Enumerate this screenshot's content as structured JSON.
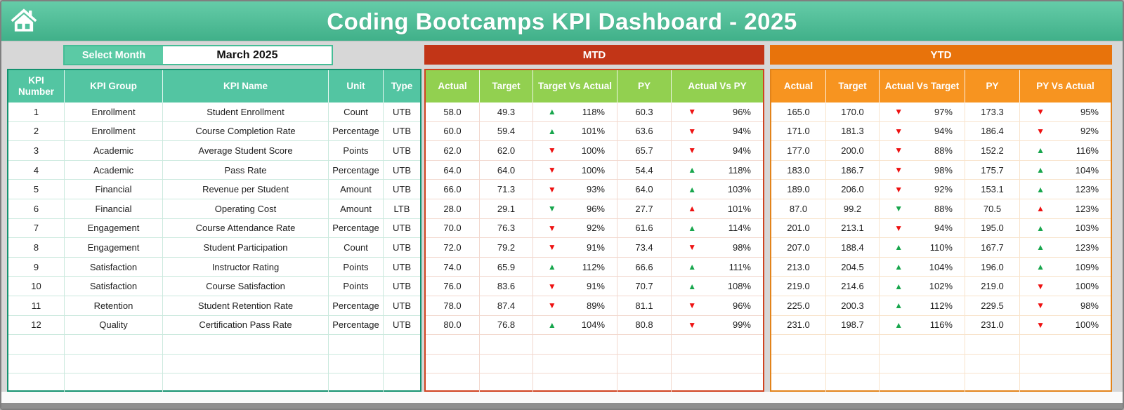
{
  "title": "Coding Bootcamps KPI Dashboard - 2025",
  "month_selector": {
    "label": "Select Month",
    "value": "March 2025"
  },
  "left_headers": [
    "KPI Number",
    "KPI Group",
    "KPI Name",
    "Unit",
    "Type"
  ],
  "mtd": {
    "title": "MTD",
    "headers": [
      "Actual",
      "Target",
      "Target Vs Actual",
      "PY",
      "Actual Vs PY"
    ]
  },
  "ytd": {
    "title": "YTD",
    "headers": [
      "Actual",
      "Target",
      "Actual Vs Target",
      "PY",
      "PY Vs Actual"
    ]
  },
  "empty_rows": 3,
  "colors": {
    "header_teal": "#53C5A2",
    "banner_mtd_red": "#C23517",
    "mtd_header_green": "#92D050",
    "banner_ytd_orange": "#E8730B",
    "ytd_header_orange": "#F79420",
    "arrow_green": "#18A64D",
    "arrow_red": "#EE1111"
  },
  "rows": [
    {
      "num": "1",
      "group": "Enrollment",
      "name": "Student Enrollment",
      "unit": "Count",
      "type": "UTB",
      "mtd": {
        "actual": "58.0",
        "target": "49.3",
        "tva": {
          "dir": "up",
          "color": "green",
          "value": "118%"
        },
        "py": "60.3",
        "avp": {
          "dir": "down",
          "color": "red",
          "value": "96%"
        }
      },
      "ytd": {
        "actual": "165.0",
        "target": "170.0",
        "avt": {
          "dir": "down",
          "color": "red",
          "value": "97%"
        },
        "py": "173.3",
        "pva": {
          "dir": "down",
          "color": "red",
          "value": "95%"
        }
      }
    },
    {
      "num": "2",
      "group": "Enrollment",
      "name": "Course Completion Rate",
      "unit": "Percentage",
      "type": "UTB",
      "mtd": {
        "actual": "60.0",
        "target": "59.4",
        "tva": {
          "dir": "up",
          "color": "green",
          "value": "101%"
        },
        "py": "63.6",
        "avp": {
          "dir": "down",
          "color": "red",
          "value": "94%"
        }
      },
      "ytd": {
        "actual": "171.0",
        "target": "181.3",
        "avt": {
          "dir": "down",
          "color": "red",
          "value": "94%"
        },
        "py": "186.4",
        "pva": {
          "dir": "down",
          "color": "red",
          "value": "92%"
        }
      }
    },
    {
      "num": "3",
      "group": "Academic",
      "name": "Average Student Score",
      "unit": "Points",
      "type": "UTB",
      "mtd": {
        "actual": "62.0",
        "target": "62.0",
        "tva": {
          "dir": "down",
          "color": "red",
          "value": "100%"
        },
        "py": "65.7",
        "avp": {
          "dir": "down",
          "color": "red",
          "value": "94%"
        }
      },
      "ytd": {
        "actual": "177.0",
        "target": "200.0",
        "avt": {
          "dir": "down",
          "color": "red",
          "value": "88%"
        },
        "py": "152.2",
        "pva": {
          "dir": "up",
          "color": "green",
          "value": "116%"
        }
      }
    },
    {
      "num": "4",
      "group": "Academic",
      "name": "Pass Rate",
      "unit": "Percentage",
      "type": "UTB",
      "mtd": {
        "actual": "64.0",
        "target": "64.0",
        "tva": {
          "dir": "down",
          "color": "red",
          "value": "100%"
        },
        "py": "54.4",
        "avp": {
          "dir": "up",
          "color": "green",
          "value": "118%"
        }
      },
      "ytd": {
        "actual": "183.0",
        "target": "186.7",
        "avt": {
          "dir": "down",
          "color": "red",
          "value": "98%"
        },
        "py": "175.7",
        "pva": {
          "dir": "up",
          "color": "green",
          "value": "104%"
        }
      }
    },
    {
      "num": "5",
      "group": "Financial",
      "name": "Revenue per Student",
      "unit": "Amount",
      "type": "UTB",
      "mtd": {
        "actual": "66.0",
        "target": "71.3",
        "tva": {
          "dir": "down",
          "color": "red",
          "value": "93%"
        },
        "py": "64.0",
        "avp": {
          "dir": "up",
          "color": "green",
          "value": "103%"
        }
      },
      "ytd": {
        "actual": "189.0",
        "target": "206.0",
        "avt": {
          "dir": "down",
          "color": "red",
          "value": "92%"
        },
        "py": "153.1",
        "pva": {
          "dir": "up",
          "color": "green",
          "value": "123%"
        }
      }
    },
    {
      "num": "6",
      "group": "Financial",
      "name": "Operating Cost",
      "unit": "Amount",
      "type": "LTB",
      "mtd": {
        "actual": "28.0",
        "target": "29.1",
        "tva": {
          "dir": "down",
          "color": "green",
          "value": "96%"
        },
        "py": "27.7",
        "avp": {
          "dir": "up",
          "color": "red",
          "value": "101%"
        }
      },
      "ytd": {
        "actual": "87.0",
        "target": "99.2",
        "avt": {
          "dir": "down",
          "color": "green",
          "value": "88%"
        },
        "py": "70.5",
        "pva": {
          "dir": "up",
          "color": "red",
          "value": "123%"
        }
      }
    },
    {
      "num": "7",
      "group": "Engagement",
      "name": "Course Attendance Rate",
      "unit": "Percentage",
      "type": "UTB",
      "mtd": {
        "actual": "70.0",
        "target": "76.3",
        "tva": {
          "dir": "down",
          "color": "red",
          "value": "92%"
        },
        "py": "61.6",
        "avp": {
          "dir": "up",
          "color": "green",
          "value": "114%"
        }
      },
      "ytd": {
        "actual": "201.0",
        "target": "213.1",
        "avt": {
          "dir": "down",
          "color": "red",
          "value": "94%"
        },
        "py": "195.0",
        "pva": {
          "dir": "up",
          "color": "green",
          "value": "103%"
        }
      }
    },
    {
      "num": "8",
      "group": "Engagement",
      "name": "Student Participation",
      "unit": "Count",
      "type": "UTB",
      "mtd": {
        "actual": "72.0",
        "target": "79.2",
        "tva": {
          "dir": "down",
          "color": "red",
          "value": "91%"
        },
        "py": "73.4",
        "avp": {
          "dir": "down",
          "color": "red",
          "value": "98%"
        }
      },
      "ytd": {
        "actual": "207.0",
        "target": "188.4",
        "avt": {
          "dir": "up",
          "color": "green",
          "value": "110%"
        },
        "py": "167.7",
        "pva": {
          "dir": "up",
          "color": "green",
          "value": "123%"
        }
      }
    },
    {
      "num": "9",
      "group": "Satisfaction",
      "name": "Instructor Rating",
      "unit": "Points",
      "type": "UTB",
      "mtd": {
        "actual": "74.0",
        "target": "65.9",
        "tva": {
          "dir": "up",
          "color": "green",
          "value": "112%"
        },
        "py": "66.6",
        "avp": {
          "dir": "up",
          "color": "green",
          "value": "111%"
        }
      },
      "ytd": {
        "actual": "213.0",
        "target": "204.5",
        "avt": {
          "dir": "up",
          "color": "green",
          "value": "104%"
        },
        "py": "196.0",
        "pva": {
          "dir": "up",
          "color": "green",
          "value": "109%"
        }
      }
    },
    {
      "num": "10",
      "group": "Satisfaction",
      "name": "Course Satisfaction",
      "unit": "Points",
      "type": "UTB",
      "mtd": {
        "actual": "76.0",
        "target": "83.6",
        "tva": {
          "dir": "down",
          "color": "red",
          "value": "91%"
        },
        "py": "70.7",
        "avp": {
          "dir": "up",
          "color": "green",
          "value": "108%"
        }
      },
      "ytd": {
        "actual": "219.0",
        "target": "214.6",
        "avt": {
          "dir": "up",
          "color": "green",
          "value": "102%"
        },
        "py": "219.0",
        "pva": {
          "dir": "down",
          "color": "red",
          "value": "100%"
        }
      }
    },
    {
      "num": "11",
      "group": "Retention",
      "name": "Student Retention Rate",
      "unit": "Percentage",
      "type": "UTB",
      "mtd": {
        "actual": "78.0",
        "target": "87.4",
        "tva": {
          "dir": "down",
          "color": "red",
          "value": "89%"
        },
        "py": "81.1",
        "avp": {
          "dir": "down",
          "color": "red",
          "value": "96%"
        }
      },
      "ytd": {
        "actual": "225.0",
        "target": "200.3",
        "avt": {
          "dir": "up",
          "color": "green",
          "value": "112%"
        },
        "py": "229.5",
        "pva": {
          "dir": "down",
          "color": "red",
          "value": "98%"
        }
      }
    },
    {
      "num": "12",
      "group": "Quality",
      "name": "Certification Pass Rate",
      "unit": "Percentage",
      "type": "UTB",
      "mtd": {
        "actual": "80.0",
        "target": "76.8",
        "tva": {
          "dir": "up",
          "color": "green",
          "value": "104%"
        },
        "py": "80.8",
        "avp": {
          "dir": "down",
          "color": "red",
          "value": "99%"
        }
      },
      "ytd": {
        "actual": "231.0",
        "target": "198.7",
        "avt": {
          "dir": "up",
          "color": "green",
          "value": "116%"
        },
        "py": "231.0",
        "pva": {
          "dir": "down",
          "color": "red",
          "value": "100%"
        }
      }
    }
  ]
}
